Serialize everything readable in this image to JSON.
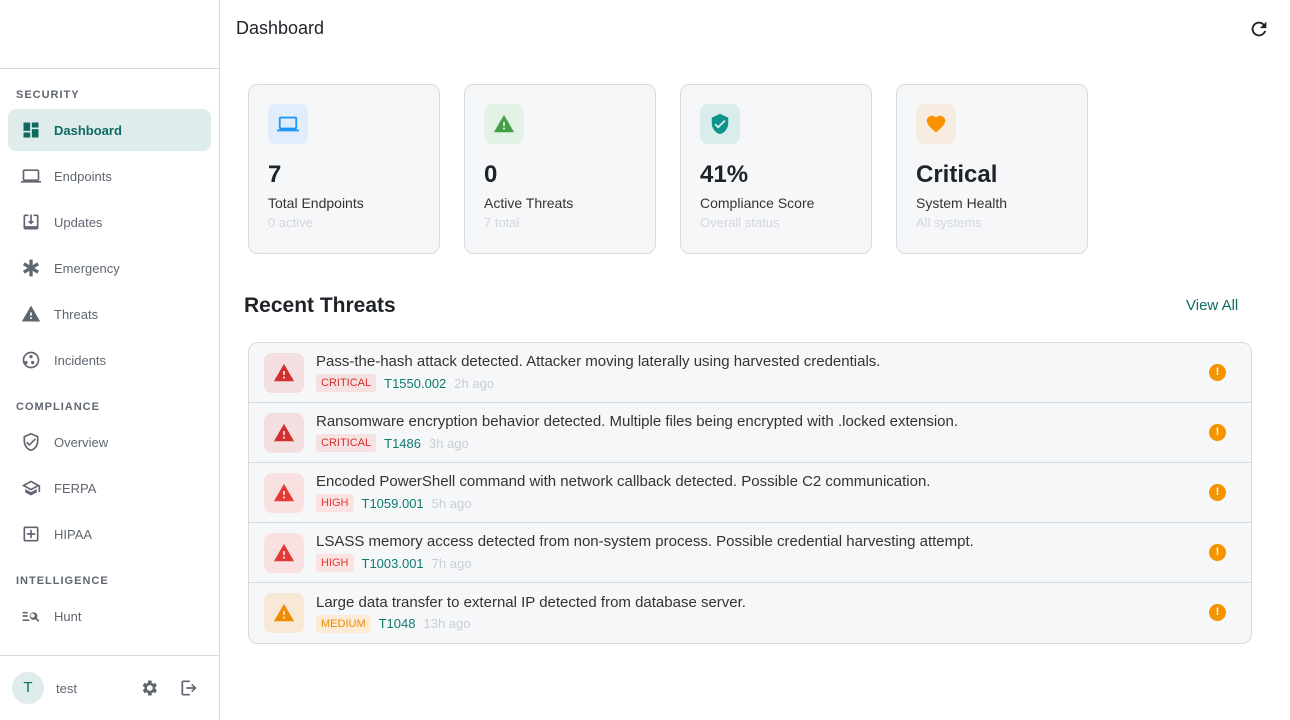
{
  "sidebar": {
    "sections": [
      "SECURITY",
      "COMPLIANCE",
      "INTELLIGENCE"
    ],
    "items": [
      {
        "label": "Dashboard",
        "icon": "dashboard-icon"
      },
      {
        "label": "Endpoints",
        "icon": "laptop-icon"
      },
      {
        "label": "Updates",
        "icon": "download-icon"
      },
      {
        "label": "Emergency",
        "icon": "asterisk-icon"
      },
      {
        "label": "Threats",
        "icon": "warning-icon"
      },
      {
        "label": "Incidents",
        "icon": "incidents-icon"
      },
      {
        "label": "Overview",
        "icon": "shield-icon"
      },
      {
        "label": "FERPA",
        "icon": "school-icon"
      },
      {
        "label": "HIPAA",
        "icon": "medical-icon"
      },
      {
        "label": "Hunt",
        "icon": "hunt-icon"
      }
    ],
    "user": {
      "initial": "T",
      "name": "test"
    }
  },
  "header": {
    "title": "Dashboard"
  },
  "cards": [
    {
      "value": "7",
      "label": "Total Endpoints",
      "sub": "0 active",
      "color": "#2196f3",
      "bg": "#e0eefb"
    },
    {
      "value": "0",
      "label": "Active Threats",
      "sub": "7 total",
      "color": "#43a047",
      "bg": "#e4f1e6"
    },
    {
      "value": "41%",
      "label": "Compliance Score",
      "sub": "Overall status",
      "color": "#0d9488",
      "bg": "#d9eeec"
    },
    {
      "value": "Critical",
      "label": "System Health",
      "sub": "All systems",
      "color": "#fb9200",
      "bg": "#f7ece0"
    }
  ],
  "threats": {
    "title": "Recent Threats",
    "view_all": "View All",
    "items": [
      {
        "message": "Pass-the-hash attack detected. Attacker moving laterally using harvested credentials.",
        "severity": "CRITICAL",
        "technique": "T1550.002",
        "time": "2h ago"
      },
      {
        "message": "Ransomware encryption behavior detected. Multiple files being encrypted with .locked extension.",
        "severity": "CRITICAL",
        "technique": "T1486",
        "time": "3h ago"
      },
      {
        "message": "Encoded PowerShell command with network callback detected. Possible C2 communication.",
        "severity": "HIGH",
        "technique": "T1059.001",
        "time": "5h ago"
      },
      {
        "message": "LSASS memory access detected from non-system process. Possible credential harvesting attempt.",
        "severity": "HIGH",
        "technique": "T1003.001",
        "time": "7h ago"
      },
      {
        "message": "Large data transfer to external IP detected from database server.",
        "severity": "MEDIUM",
        "technique": "T1048",
        "time": "13h ago"
      }
    ],
    "status_glyph": "!"
  },
  "colors": {
    "accent": "#0d6b62",
    "critical": "#d32f2f",
    "high": "#e53935",
    "medium": "#fb8c00"
  }
}
